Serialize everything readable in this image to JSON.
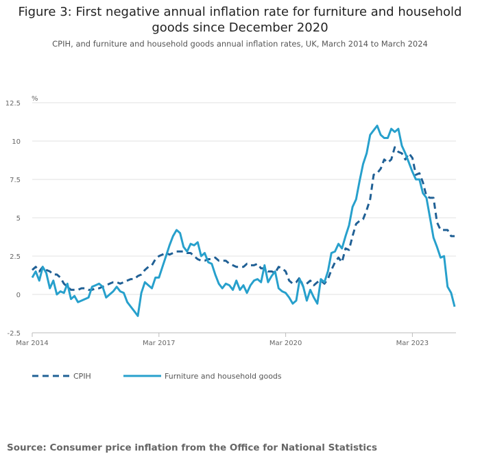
{
  "title": "Figure 3: First negative annual inflation rate for furniture and household goods since December 2020",
  "subtitle": "CPIH, and furniture and household goods annual inflation rates, UK, March 2014 to March 2024",
  "source": "Source: Consumer price inflation from the Office for National Statistics",
  "chart_data": {
    "type": "line",
    "title": "Figure 3: First negative annual inflation rate for furniture and household goods since December 2020",
    "ylabel": "%",
    "xlabel": "",
    "x_start": "Mar 2014",
    "x_end": "Mar 2024",
    "x_frequency": "monthly",
    "x_ticks": [
      "Mar 2014",
      "Mar 2017",
      "Mar 2020",
      "Mar 2023"
    ],
    "y_ticks": [
      "12.5",
      "10",
      "7.5",
      "5",
      "2.5",
      "0",
      "-2.5"
    ],
    "ylim": [
      -2.5,
      12.5
    ],
    "grid": true,
    "legend_position": "bottom",
    "series": [
      {
        "name": "CPIH",
        "color": "#206095",
        "style": "dashed",
        "values": [
          1.6,
          1.8,
          1.5,
          1.8,
          1.6,
          1.5,
          1.3,
          1.3,
          1.1,
          0.7,
          0.5,
          0.3,
          0.3,
          0.3,
          0.4,
          0.4,
          0.3,
          0.3,
          0.4,
          0.4,
          0.5,
          0.6,
          0.7,
          0.8,
          0.8,
          0.7,
          0.8,
          0.9,
          1.0,
          1.0,
          1.2,
          1.3,
          1.6,
          1.8,
          1.9,
          2.3,
          2.5,
          2.6,
          2.7,
          2.6,
          2.7,
          2.8,
          2.8,
          2.8,
          2.7,
          2.7,
          2.5,
          2.3,
          2.2,
          2.2,
          2.3,
          2.3,
          2.4,
          2.2,
          2.2,
          2.2,
          2.0,
          1.9,
          1.8,
          1.8,
          1.8,
          2.0,
          1.9,
          1.9,
          2.0,
          1.7,
          1.7,
          1.5,
          1.5,
          1.4,
          1.8,
          1.7,
          1.5,
          0.9,
          0.7,
          0.8,
          1.1,
          0.5,
          0.7,
          0.9,
          0.6,
          0.8,
          0.9,
          0.7,
          1.0,
          1.6,
          2.1,
          2.4,
          2.1,
          3.0,
          2.9,
          3.8,
          4.6,
          4.8,
          4.9,
          5.5,
          6.2,
          7.8,
          7.9,
          8.2,
          8.8,
          8.6,
          8.8,
          9.6,
          9.3,
          9.2,
          8.8,
          9.2,
          8.9,
          7.8,
          7.9,
          7.3,
          6.4,
          6.3,
          6.3,
          4.7,
          4.2,
          4.2,
          4.2,
          3.8,
          3.8
        ]
      },
      {
        "name": "Furniture and household goods",
        "color": "#27a0cc",
        "style": "solid",
        "values": [
          1.1,
          1.5,
          0.9,
          1.8,
          1.4,
          0.4,
          0.9,
          0.0,
          0.2,
          0.1,
          0.7,
          -0.3,
          -0.1,
          -0.5,
          -0.4,
          -0.3,
          -0.2,
          0.5,
          0.6,
          0.7,
          0.5,
          -0.2,
          0.0,
          0.2,
          0.5,
          0.2,
          0.1,
          -0.5,
          -0.8,
          -1.1,
          -1.4,
          0.1,
          0.8,
          0.6,
          0.4,
          1.1,
          1.1,
          1.8,
          2.5,
          3.2,
          3.8,
          4.2,
          4.0,
          3.1,
          2.8,
          3.3,
          3.2,
          3.4,
          2.5,
          2.7,
          2.1,
          2.0,
          1.3,
          0.7,
          0.4,
          0.7,
          0.6,
          0.3,
          0.9,
          0.3,
          0.6,
          0.1,
          0.6,
          0.9,
          1.0,
          0.8,
          1.9,
          0.8,
          1.2,
          1.5,
          0.4,
          0.2,
          0.1,
          -0.2,
          -0.6,
          -0.4,
          1.0,
          0.5,
          -0.4,
          0.3,
          -0.2,
          -0.6,
          1.0,
          0.8,
          1.5,
          2.7,
          2.8,
          3.3,
          3.0,
          3.8,
          4.5,
          5.7,
          6.2,
          7.4,
          8.5,
          9.2,
          10.4,
          10.7,
          11.0,
          10.4,
          10.2,
          10.2,
          10.8,
          10.6,
          10.8,
          9.7,
          9.2,
          8.6,
          8.0,
          7.5,
          7.5,
          6.6,
          6.3,
          5.0,
          3.7,
          3.1,
          2.4,
          2.5,
          0.5,
          0.1,
          -0.8
        ]
      }
    ]
  }
}
